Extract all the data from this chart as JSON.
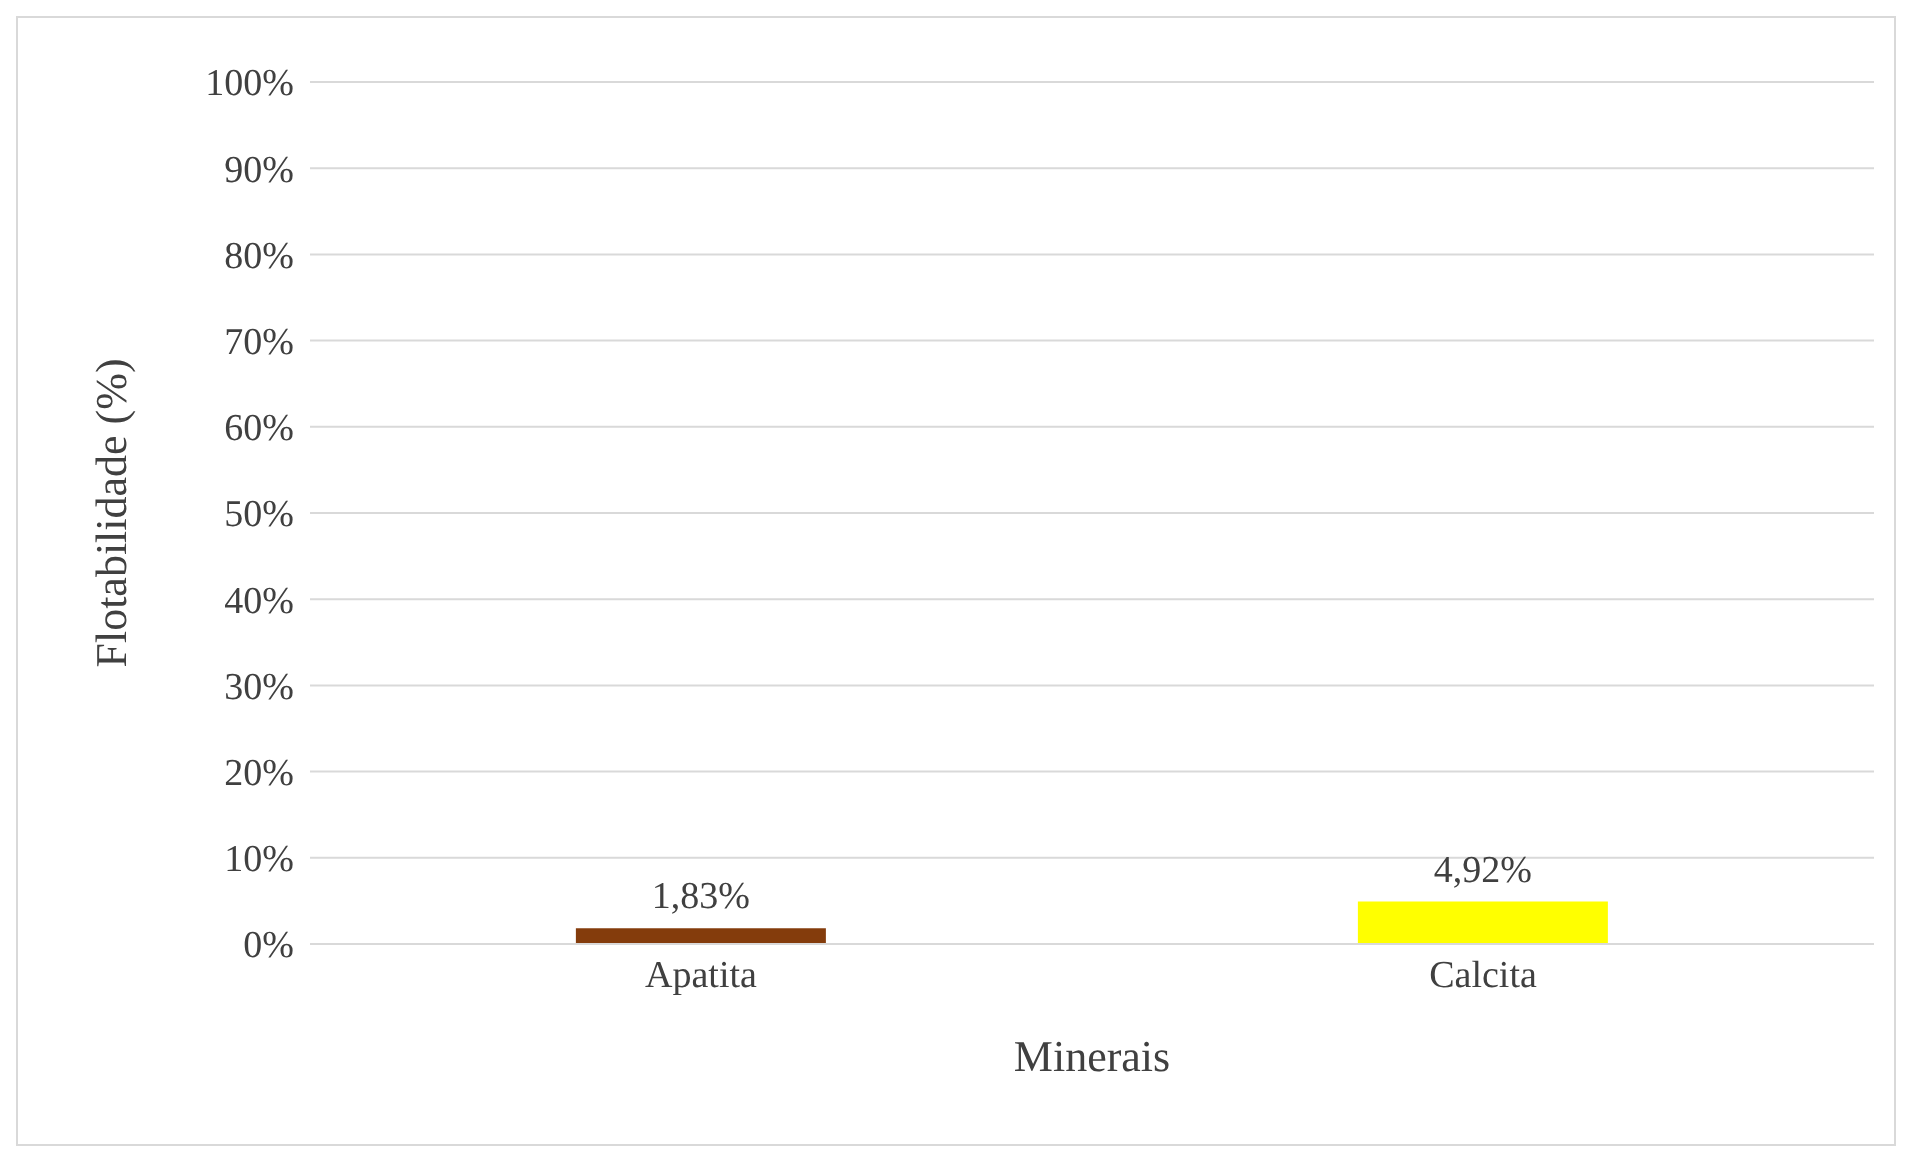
{
  "chart_data": {
    "type": "bar",
    "xlabel": "Minerais",
    "ylabel": "Flotabilidade (%)",
    "categories": [
      "Apatita",
      "Calcita"
    ],
    "values": [
      1.83,
      4.92
    ],
    "colors": [
      "#843c0c",
      "#ffff00"
    ],
    "value_labels": [
      "1,83%",
      "4,92%"
    ],
    "ylim": [
      0,
      100
    ],
    "yticks": [
      {
        "value": 0,
        "label": "0%"
      },
      {
        "value": 10,
        "label": "10%"
      },
      {
        "value": 20,
        "label": "20%"
      },
      {
        "value": 30,
        "label": "30%"
      },
      {
        "value": 40,
        "label": "40%"
      },
      {
        "value": 50,
        "label": "50%"
      },
      {
        "value": 60,
        "label": "60%"
      },
      {
        "value": 70,
        "label": "70%"
      },
      {
        "value": 80,
        "label": "80%"
      },
      {
        "value": 90,
        "label": "90%"
      },
      {
        "value": 100,
        "label": "100%"
      }
    ],
    "grid": "y"
  }
}
